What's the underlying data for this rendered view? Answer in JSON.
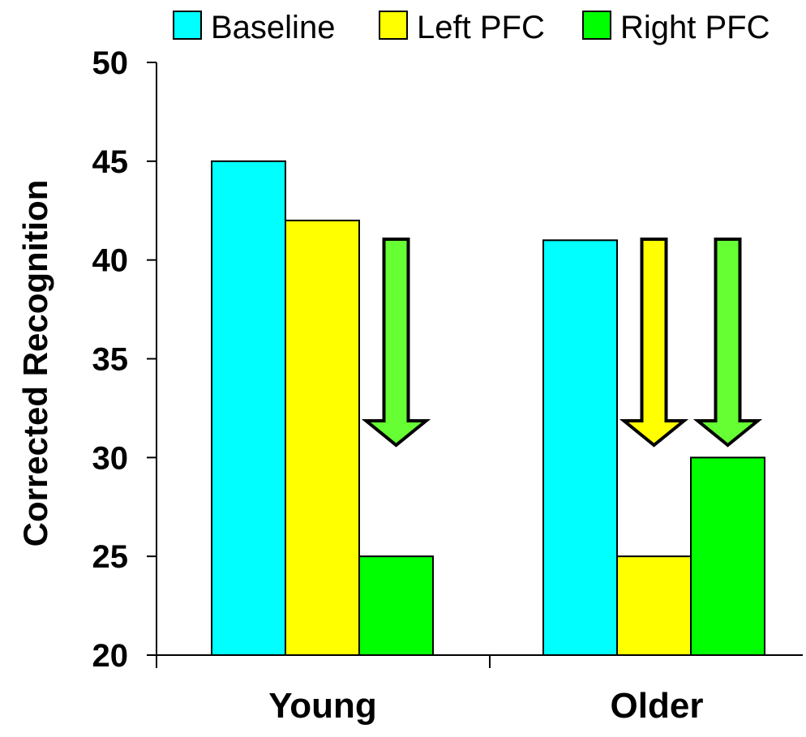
{
  "chart_data": {
    "type": "bar",
    "title": "",
    "xlabel": "",
    "ylabel": "Corrected Recognition",
    "categories": [
      "Young",
      "Older"
    ],
    "series": [
      {
        "name": "Baseline",
        "values": [
          45,
          41
        ],
        "color": "#00ffff"
      },
      {
        "name": "Left PFC",
        "values": [
          42,
          25
        ],
        "color": "#ffff00"
      },
      {
        "name": "Right PFC",
        "values": [
          25,
          30
        ],
        "color": "#00ff00"
      }
    ],
    "ylim": [
      20,
      50
    ],
    "yticks": [
      "20",
      "25",
      "30",
      "35",
      "40",
      "45",
      "50"
    ],
    "grid": false,
    "legend_position": "top",
    "annotations": [
      {
        "type": "down-arrow",
        "category": "Young",
        "series": "Right PFC",
        "color": "#66ff33"
      },
      {
        "type": "down-arrow",
        "category": "Older",
        "series": "Left PFC",
        "color": "#ffff00"
      },
      {
        "type": "down-arrow",
        "category": "Older",
        "series": "Right PFC",
        "color": "#66ff33"
      }
    ]
  }
}
